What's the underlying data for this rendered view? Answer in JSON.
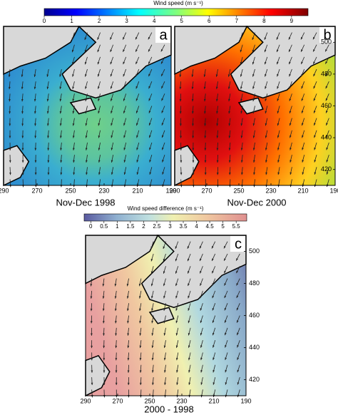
{
  "colorbar_top": {
    "title": "Wind speed (m s⁻¹)",
    "lim": [
      0,
      9.6
    ],
    "ticks": [
      0,
      1,
      2,
      3,
      4,
      5,
      6,
      7,
      8,
      9
    ]
  },
  "colorbar_bottom": {
    "title": "Wind speed difference (m s⁻¹)",
    "lim": [
      -0.25,
      5.9
    ],
    "ticks": [
      0,
      0.5,
      1,
      1.5,
      2,
      2.5,
      3,
      3.5,
      4,
      4.5,
      5,
      5.5
    ]
  },
  "panels": [
    {
      "label": "a",
      "caption": "Nov-Dec 1998",
      "xlim": [
        290,
        190
      ],
      "xticks": [
        290,
        270,
        250,
        230,
        210,
        190
      ]
    },
    {
      "label": "b",
      "caption": "Nov-Dec 2000",
      "xlim": [
        290,
        190
      ],
      "xticks": [
        290,
        270,
        250,
        230,
        210,
        190
      ],
      "ylim": [
        410,
        510
      ],
      "yticks": [
        420,
        440,
        460,
        480,
        500
      ]
    },
    {
      "label": "c",
      "caption": "2000 - 1998",
      "xlim": [
        290,
        190
      ],
      "xticks": [
        290,
        270,
        250,
        230,
        210,
        190
      ],
      "ylim": [
        410,
        510
      ],
      "yticks": [
        420,
        440,
        460,
        480,
        500
      ]
    }
  ]
}
